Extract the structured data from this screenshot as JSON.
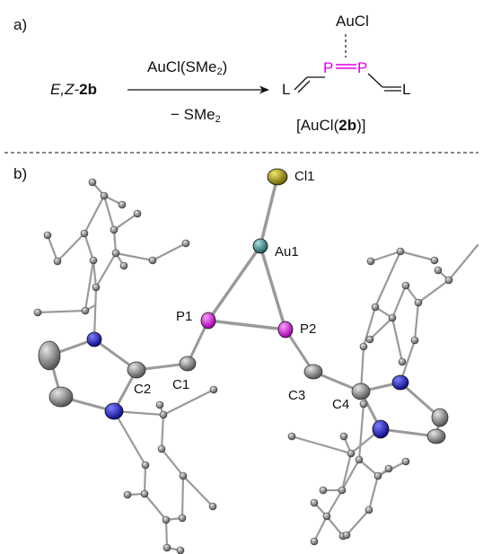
{
  "panel_a": {
    "label": "a)",
    "reactant_prefix": "E,Z-",
    "reactant_id": "2b",
    "reagent_above_prefix": "AuCl(SMe",
    "reagent_above_sub": "2",
    "reagent_above_suffix": ")",
    "reagent_below_prefix": "− SMe",
    "reagent_below_sub": "2",
    "product_top": "AuCl",
    "phosphorus_left": "P",
    "phosphorus_right": "P",
    "ligand_left": "L",
    "ligand_right": "L",
    "product_name_prefix": "[AuCl(",
    "product_name_bold": "2b",
    "product_name_suffix": ")]"
  },
  "panel_b": {
    "label": "b)",
    "atom_labels": {
      "cl1": "Cl1",
      "au1": "Au1",
      "p1": "P1",
      "p2": "P2",
      "c1": "C1",
      "c2": "C2",
      "c3": "C3",
      "c4": "C4"
    }
  },
  "colors": {
    "phosphorus": "#e000e0",
    "gold": "#2e8a8a",
    "chlorine": "#b5a800",
    "nitrogen": "#1a1ad0",
    "carbon": "#888888"
  }
}
